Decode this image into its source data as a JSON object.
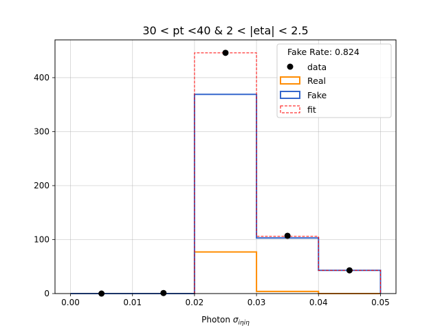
{
  "chart_data": {
    "type": "histogram",
    "title": "30 < pt <40 & 2 < |eta| < 2.5",
    "xlabel_prefix": "Photon ",
    "xlabel_symbol": "σ",
    "xlabel_sub": "iηiη",
    "ylabel": "",
    "xlim": [
      -0.0025,
      0.0525
    ],
    "ylim": [
      0,
      470
    ],
    "xticks": [
      0.0,
      0.01,
      0.02,
      0.03,
      0.04,
      0.05
    ],
    "xtick_labels": [
      "0.00",
      "0.01",
      "0.02",
      "0.03",
      "0.04",
      "0.05"
    ],
    "yticks": [
      0,
      100,
      200,
      300,
      400
    ],
    "ytick_labels": [
      "0",
      "100",
      "200",
      "300",
      "400"
    ],
    "grid": true,
    "bin_edges": [
      0.0,
      0.01,
      0.02,
      0.03,
      0.04,
      0.05
    ],
    "data_points": {
      "name": "data",
      "x": [
        0.005,
        0.015,
        0.025,
        0.035,
        0.045
      ],
      "y": [
        0,
        1,
        446,
        107,
        43
      ]
    },
    "series": [
      {
        "name": "Real",
        "values": [
          0,
          0,
          77,
          4,
          0
        ],
        "color": "#ff8c00",
        "style": "solid"
      },
      {
        "name": "Fake",
        "values": [
          0,
          0,
          369,
          103,
          43
        ],
        "color": "#3366cc",
        "style": "solid"
      },
      {
        "name": "fit",
        "values": [
          0,
          0,
          446,
          106,
          43
        ],
        "color": "#ff0000",
        "style": "dashed"
      }
    ],
    "legend": {
      "placement": "top-right",
      "header": "Fake Rate: 0.824"
    }
  }
}
